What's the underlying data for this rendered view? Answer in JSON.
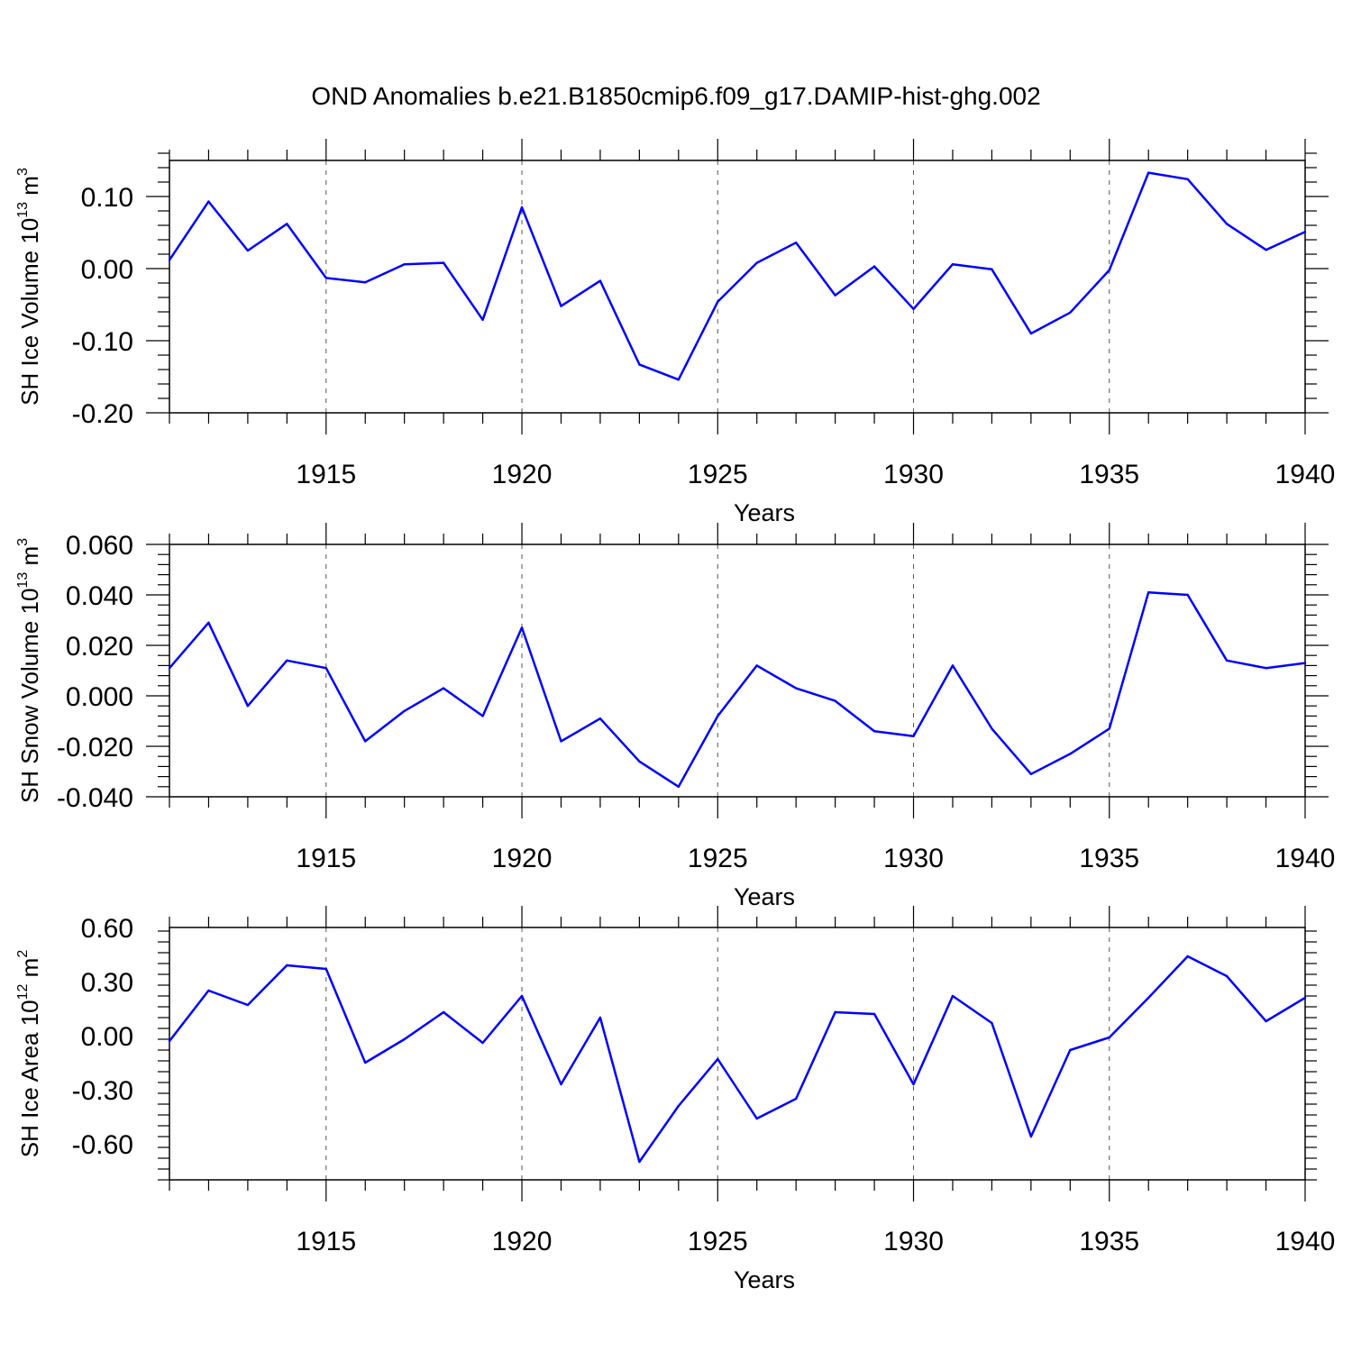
{
  "title": "OND Anomalies b.e21.B1850cmip6.f09_g17.DAMIP-hist-ghg.002",
  "line_color": "#0000ff",
  "chart_data": [
    {
      "type": "line",
      "ylabel": {
        "prefix": "SH Ice Volume 10",
        "exp": "13",
        "unit": " m",
        "unit_exp": "3"
      },
      "xlabel": "Years",
      "xlim": [
        1911,
        1940
      ],
      "ylim": [
        -0.2,
        0.15
      ],
      "yticks": [
        -0.2,
        -0.1,
        0.0,
        0.1
      ],
      "ytick_labels": [
        "-0.20",
        "-0.10",
        "0.00",
        "0.10"
      ],
      "xticks": [
        1915,
        1920,
        1925,
        1930,
        1935,
        1940
      ],
      "xtick_labels": [
        "1915",
        "1920",
        "1925",
        "1930",
        "1935",
        "1940"
      ],
      "grid": "vertical dashed at major x ticks",
      "x": [
        1911,
        1912,
        1913,
        1914,
        1915,
        1916,
        1917,
        1918,
        1919,
        1920,
        1921,
        1922,
        1923,
        1924,
        1925,
        1926,
        1927,
        1928,
        1929,
        1930,
        1931,
        1932,
        1933,
        1934,
        1935,
        1936,
        1937,
        1938,
        1939,
        1940
      ],
      "values": [
        0.012,
        0.093,
        0.025,
        0.062,
        -0.013,
        -0.019,
        0.006,
        0.008,
        -0.071,
        0.085,
        -0.052,
        -0.017,
        -0.133,
        -0.154,
        -0.046,
        0.008,
        0.036,
        -0.037,
        0.003,
        -0.056,
        0.006,
        -0.001,
        -0.09,
        -0.061,
        -0.002,
        0.133,
        0.124,
        0.062,
        0.026,
        0.051
      ]
    },
    {
      "type": "line",
      "ylabel": {
        "prefix": "SH Snow Volume 10",
        "exp": "13",
        "unit": " m",
        "unit_exp": "3"
      },
      "xlabel": "Years",
      "xlim": [
        1911,
        1940
      ],
      "ylim": [
        -0.04,
        0.06
      ],
      "yticks": [
        -0.04,
        -0.02,
        0.0,
        0.02,
        0.04,
        0.06
      ],
      "ytick_labels": [
        "-0.040",
        "-0.020",
        "0.000",
        "0.020",
        "0.040",
        "0.060"
      ],
      "xticks": [
        1915,
        1920,
        1925,
        1930,
        1935,
        1940
      ],
      "xtick_labels": [
        "1915",
        "1920",
        "1925",
        "1930",
        "1935",
        "1940"
      ],
      "grid": "vertical dashed at major x ticks",
      "x": [
        1911,
        1912,
        1913,
        1914,
        1915,
        1916,
        1917,
        1918,
        1919,
        1920,
        1921,
        1922,
        1923,
        1924,
        1925,
        1926,
        1927,
        1928,
        1929,
        1930,
        1931,
        1932,
        1933,
        1934,
        1935,
        1936,
        1937,
        1938,
        1939,
        1940
      ],
      "values": [
        0.011,
        0.029,
        -0.004,
        0.014,
        0.011,
        -0.018,
        -0.006,
        0.003,
        -0.008,
        0.027,
        -0.018,
        -0.009,
        -0.026,
        -0.036,
        -0.008,
        0.012,
        0.003,
        -0.002,
        -0.014,
        -0.016,
        0.012,
        -0.013,
        -0.031,
        -0.023,
        -0.013,
        0.041,
        0.04,
        0.014,
        0.011,
        0.013
      ]
    },
    {
      "type": "line",
      "ylabel": {
        "prefix": "SH Ice Area 10",
        "exp": "12",
        "unit": " m",
        "unit_exp": "2"
      },
      "xlabel": "Years",
      "xlim": [
        1911,
        1940
      ],
      "ylim": [
        -0.8,
        0.6
      ],
      "yticks": [
        -0.6,
        -0.3,
        0.0,
        0.3,
        0.6
      ],
      "ytick_labels": [
        "-0.60",
        "-0.30",
        "0.00",
        "0.30",
        "0.60"
      ],
      "xticks": [
        1915,
        1920,
        1925,
        1930,
        1935,
        1940
      ],
      "xtick_labels": [
        "1915",
        "1920",
        "1925",
        "1930",
        "1935",
        "1940"
      ],
      "grid": "vertical dashed at major x ticks",
      "x": [
        1911,
        1912,
        1913,
        1914,
        1915,
        1916,
        1917,
        1918,
        1919,
        1920,
        1921,
        1922,
        1923,
        1924,
        1925,
        1926,
        1927,
        1928,
        1929,
        1930,
        1931,
        1932,
        1933,
        1934,
        1935,
        1936,
        1937,
        1938,
        1939,
        1940
      ],
      "values": [
        -0.03,
        0.25,
        0.17,
        0.39,
        0.37,
        -0.15,
        -0.02,
        0.13,
        -0.04,
        0.22,
        -0.27,
        0.1,
        -0.7,
        -0.39,
        -0.13,
        -0.46,
        -0.35,
        0.13,
        0.12,
        -0.27,
        0.22,
        0.07,
        -0.56,
        -0.08,
        -0.01,
        0.21,
        0.44,
        0.33,
        0.08,
        0.21
      ]
    }
  ]
}
